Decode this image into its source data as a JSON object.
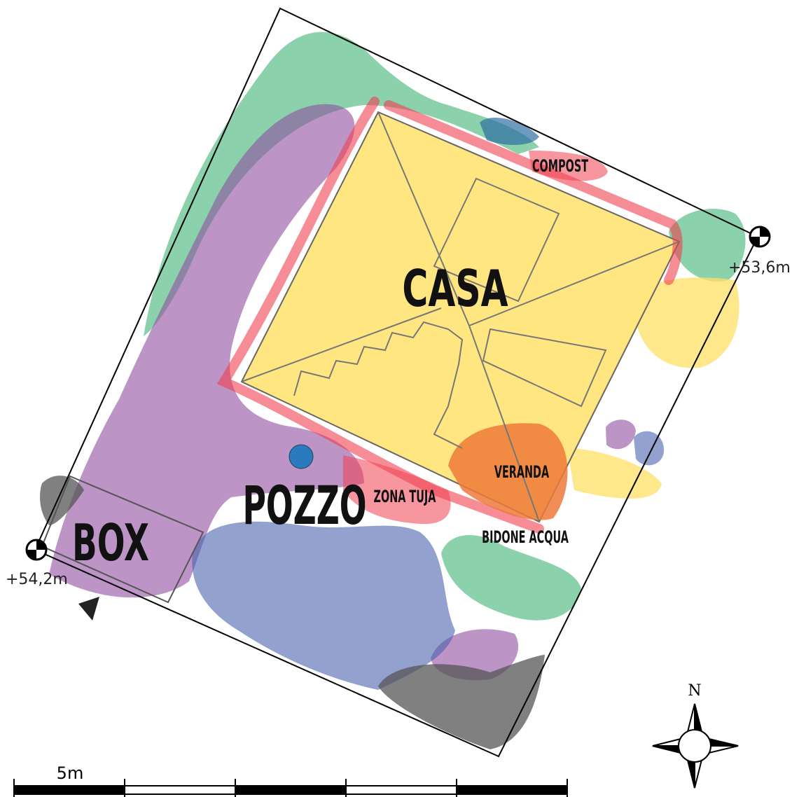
{
  "labels": {
    "casa": "CASA",
    "compost": "COMPOST",
    "veranda": "VERANDA",
    "pozzo": "POZZO",
    "zona_tuja": "ZONA TUJA",
    "bidone_acqua": "BIDONE ACQUA",
    "box": "BOX"
  },
  "elevations": [
    "+53,6m",
    "+54,2m"
  ],
  "compass": "N",
  "scale_bar": "5m"
}
